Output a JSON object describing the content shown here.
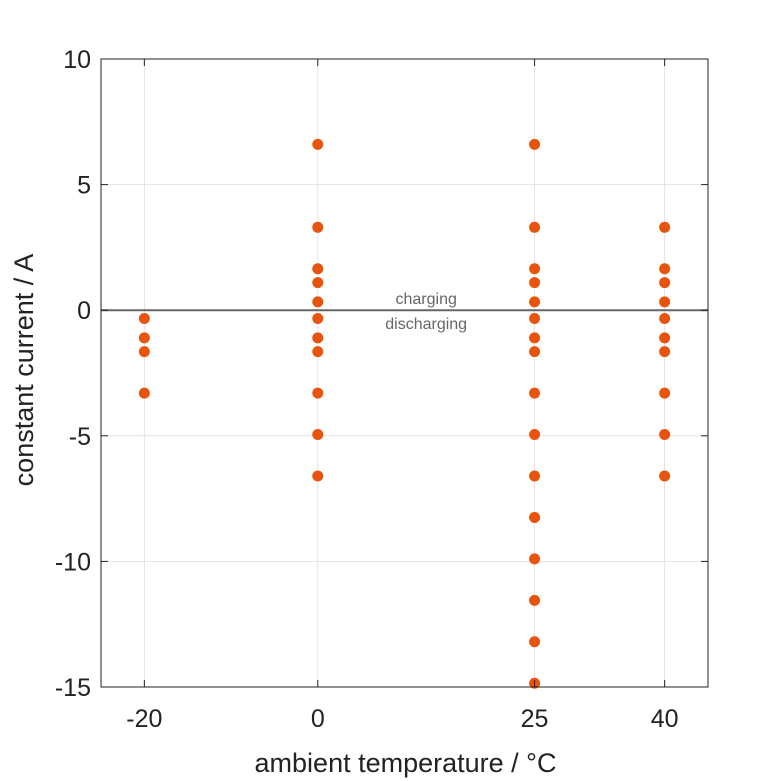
{
  "chart_data": {
    "type": "scatter",
    "title": "",
    "xlabel": "ambient temperature / °C",
    "ylabel": "constant current / A",
    "x_ticks": [
      -20,
      0,
      25,
      40
    ],
    "x_tick_labels": [
      "-20",
      "0",
      "25",
      "40"
    ],
    "y_ticks": [
      10,
      5,
      0,
      -5,
      -10,
      -15
    ],
    "y_tick_labels": [
      "10",
      "5",
      "0",
      "-5",
      "-10",
      "-15"
    ],
    "xlim": [
      -25,
      45
    ],
    "ylim": [
      -15,
      10
    ],
    "grid": true,
    "zero_line": true,
    "annotations": [
      {
        "text": "charging",
        "x": 12.5,
        "y": 0.45
      },
      {
        "text": "discharging",
        "x": 12.5,
        "y": -0.55
      }
    ],
    "series": [
      {
        "color": "#e8530e",
        "points": [
          {
            "x": -20,
            "y": -0.33
          },
          {
            "x": -20,
            "y": -1.1
          },
          {
            "x": -20,
            "y": -1.65
          },
          {
            "x": -20,
            "y": -3.3
          },
          {
            "x": 0,
            "y": 6.6
          },
          {
            "x": 0,
            "y": 3.3
          },
          {
            "x": 0,
            "y": 1.65
          },
          {
            "x": 0,
            "y": 1.1
          },
          {
            "x": 0,
            "y": 0.33
          },
          {
            "x": 0,
            "y": -0.33
          },
          {
            "x": 0,
            "y": -1.1
          },
          {
            "x": 0,
            "y": -1.65
          },
          {
            "x": 0,
            "y": -3.3
          },
          {
            "x": 0,
            "y": -4.95
          },
          {
            "x": 0,
            "y": -6.6
          },
          {
            "x": 25,
            "y": 6.6
          },
          {
            "x": 25,
            "y": 3.3
          },
          {
            "x": 25,
            "y": 1.65
          },
          {
            "x": 25,
            "y": 1.1
          },
          {
            "x": 25,
            "y": 0.33
          },
          {
            "x": 25,
            "y": -0.33
          },
          {
            "x": 25,
            "y": -1.1
          },
          {
            "x": 25,
            "y": -1.65
          },
          {
            "x": 25,
            "y": -3.3
          },
          {
            "x": 25,
            "y": -4.95
          },
          {
            "x": 25,
            "y": -6.6
          },
          {
            "x": 25,
            "y": -8.25
          },
          {
            "x": 25,
            "y": -9.9
          },
          {
            "x": 25,
            "y": -11.55
          },
          {
            "x": 25,
            "y": -13.2
          },
          {
            "x": 25,
            "y": -14.85
          },
          {
            "x": 40,
            "y": 3.3
          },
          {
            "x": 40,
            "y": 1.65
          },
          {
            "x": 40,
            "y": 1.1
          },
          {
            "x": 40,
            "y": 0.33
          },
          {
            "x": 40,
            "y": -0.33
          },
          {
            "x": 40,
            "y": -1.1
          },
          {
            "x": 40,
            "y": -1.65
          },
          {
            "x": 40,
            "y": -3.3
          },
          {
            "x": 40,
            "y": -4.95
          },
          {
            "x": 40,
            "y": -6.6
          }
        ]
      }
    ]
  }
}
